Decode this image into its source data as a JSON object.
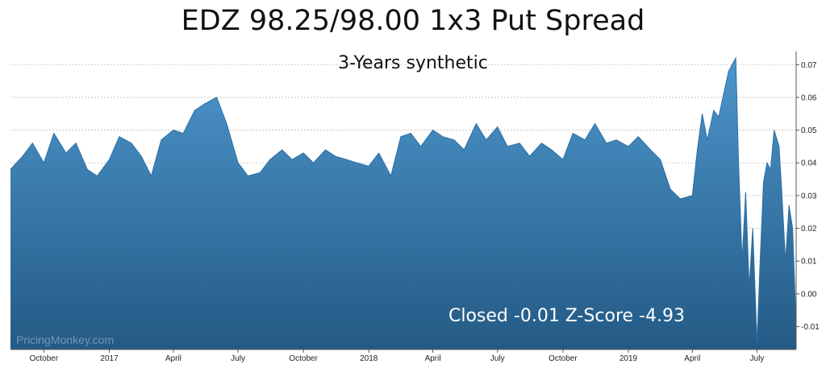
{
  "title": "EDZ 98.25/98.00 1x3 Put Spread",
  "subtitle": "3-Years synthetic",
  "status_text": "Closed -0.01 Z-Score -4.93",
  "watermark": "PricingMonkey.com",
  "colors": {
    "fill_top": "#4d96cc",
    "fill_bottom": "#245a85",
    "line": "#2a6fa6",
    "grid": "#bdbdbd",
    "text": "#111111"
  },
  "chart_data": {
    "type": "area",
    "title": "EDZ 98.25/98.00 1x3 Put Spread",
    "subtitle": "3-Years synthetic",
    "xlabel": "",
    "ylabel": "",
    "y_axis_position": "right",
    "ylim": [
      -0.017,
      0.074
    ],
    "yticks": [
      -0.01,
      0.0,
      0.01,
      0.02,
      0.03,
      0.04,
      0.05,
      0.06,
      0.07
    ],
    "ytick_labels": [
      "-0.01",
      "0.00",
      "0.01",
      "0.02",
      "0.03",
      "0.04",
      "0.05",
      "0.06",
      "0.07"
    ],
    "grid": true,
    "x_ticks": [
      {
        "label": "October",
        "x": "2016-10"
      },
      {
        "label": "2017",
        "x": "2017-01"
      },
      {
        "label": "April",
        "x": "2017-04"
      },
      {
        "label": "July",
        "x": "2017-07"
      },
      {
        "label": "October",
        "x": "2017-10"
      },
      {
        "label": "2018",
        "x": "2018-01"
      },
      {
        "label": "April",
        "x": "2018-04"
      },
      {
        "label": "July",
        "x": "2018-07"
      },
      {
        "label": "October",
        "x": "2018-10"
      },
      {
        "label": "2019",
        "x": "2019-01"
      },
      {
        "label": "April",
        "x": "2019-04"
      },
      {
        "label": "July",
        "x": "2019-07"
      }
    ],
    "series": [
      {
        "x": [
          "2016-08-15",
          "2016-09-01",
          "2016-09-15",
          "2016-10-01",
          "2016-10-15",
          "2016-11-01",
          "2016-11-15",
          "2016-12-01",
          "2016-12-15",
          "2017-01-01",
          "2017-01-15",
          "2017-02-01",
          "2017-02-15",
          "2017-03-01",
          "2017-03-15",
          "2017-04-01",
          "2017-04-15",
          "2017-05-01",
          "2017-05-15",
          "2017-06-01",
          "2017-06-15",
          "2017-07-01",
          "2017-07-15",
          "2017-08-01",
          "2017-08-15",
          "2017-09-01",
          "2017-09-15",
          "2017-10-01",
          "2017-10-15",
          "2017-11-01",
          "2017-11-15",
          "2017-12-01",
          "2017-12-15",
          "2018-01-01",
          "2018-01-15",
          "2018-02-01",
          "2018-02-15",
          "2018-03-01",
          "2018-03-15",
          "2018-04-01",
          "2018-04-15",
          "2018-05-01",
          "2018-05-15",
          "2018-06-01",
          "2018-06-15",
          "2018-07-01",
          "2018-07-15",
          "2018-08-01",
          "2018-08-15",
          "2018-09-01",
          "2018-09-15",
          "2018-10-01",
          "2018-10-15",
          "2018-11-01",
          "2018-11-15",
          "2018-12-01",
          "2018-12-15",
          "2019-01-01",
          "2019-01-15",
          "2019-02-01",
          "2019-02-15",
          "2019-03-01",
          "2019-03-15",
          "2019-04-01",
          "2019-04-08",
          "2019-04-15",
          "2019-04-22",
          "2019-05-01",
          "2019-05-08",
          "2019-05-15",
          "2019-05-22",
          "2019-06-01",
          "2019-06-05",
          "2019-06-10",
          "2019-06-15",
          "2019-06-20",
          "2019-06-25",
          "2019-07-01",
          "2019-07-05",
          "2019-07-10",
          "2019-07-15",
          "2019-07-20",
          "2019-07-25",
          "2019-08-01",
          "2019-08-05",
          "2019-08-10",
          "2019-08-15",
          "2019-08-20",
          "2019-08-25"
        ],
        "y": [
          0.038,
          0.042,
          0.046,
          0.04,
          0.049,
          0.043,
          0.046,
          0.038,
          0.036,
          0.041,
          0.048,
          0.046,
          0.042,
          0.036,
          0.047,
          0.05,
          0.049,
          0.056,
          0.058,
          0.06,
          0.052,
          0.04,
          0.036,
          0.037,
          0.041,
          0.044,
          0.041,
          0.043,
          0.04,
          0.044,
          0.042,
          0.041,
          0.04,
          0.039,
          0.043,
          0.036,
          0.048,
          0.049,
          0.045,
          0.05,
          0.048,
          0.047,
          0.044,
          0.052,
          0.047,
          0.051,
          0.045,
          0.046,
          0.042,
          0.046,
          0.044,
          0.041,
          0.049,
          0.047,
          0.052,
          0.046,
          0.047,
          0.045,
          0.048,
          0.044,
          0.041,
          0.032,
          0.029,
          0.03,
          0.044,
          0.055,
          0.047,
          0.056,
          0.054,
          0.061,
          0.068,
          0.072,
          0.04,
          0.01,
          0.031,
          0.002,
          0.02,
          -0.015,
          0.008,
          0.034,
          0.04,
          0.038,
          0.05,
          0.045,
          0.03,
          0.01,
          0.027,
          0.02,
          -0.01
        ]
      }
    ]
  }
}
